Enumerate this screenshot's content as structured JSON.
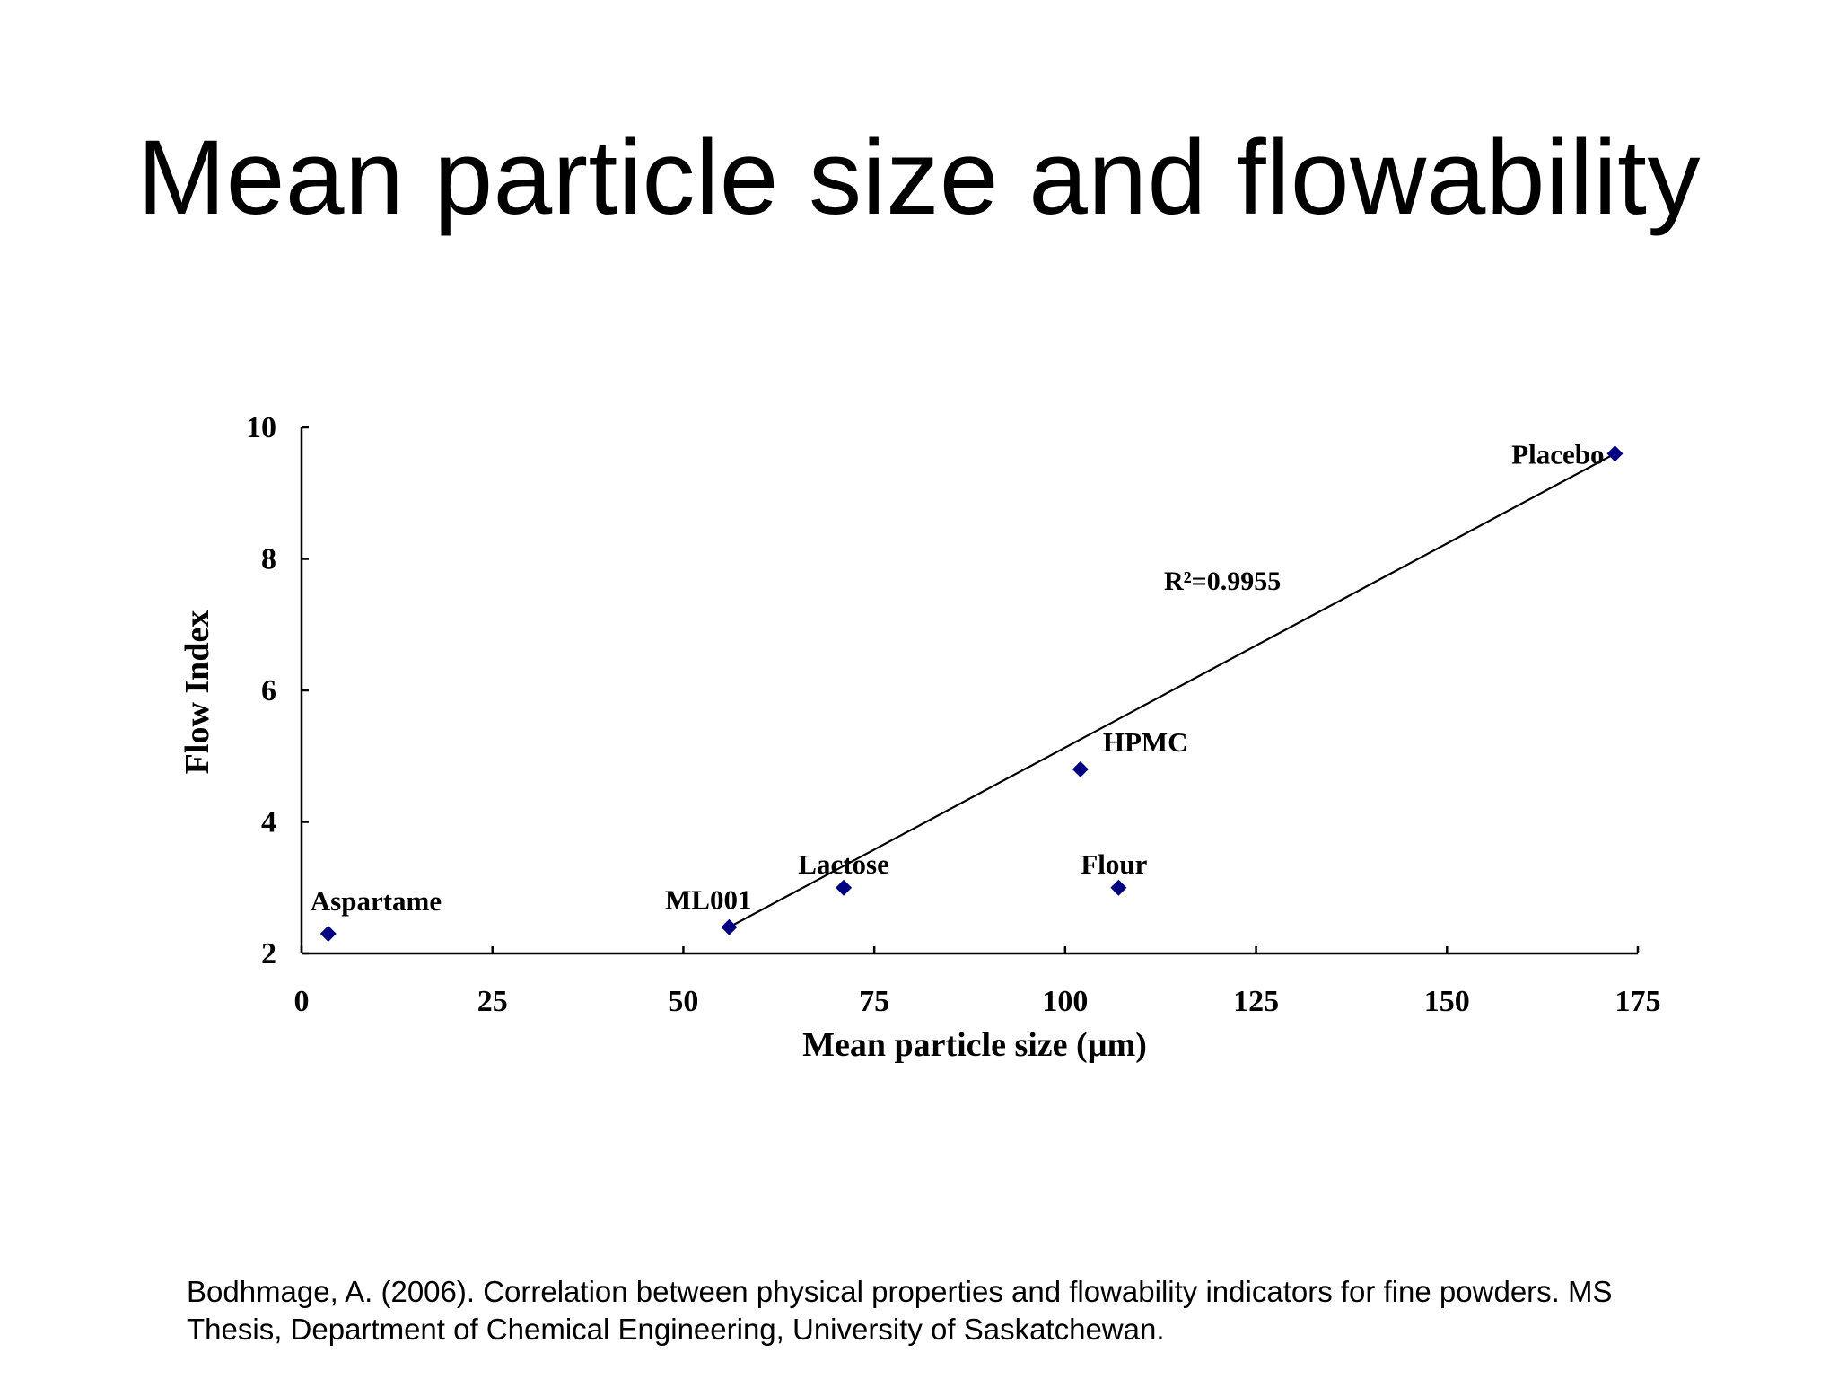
{
  "slide": {
    "title": "Mean particle size and flowability",
    "citation_line1": "Bodhmage, A. (2006). Correlation between physical properties and flowability indicators for fine powders. MS",
    "citation_line2": "Thesis, Department of Chemical Engineering, University of Saskatchewan."
  },
  "colors": {
    "marker": "#000080",
    "axis": "#000000",
    "text": "#000000",
    "trendline": "#000000"
  },
  "chart_data": {
    "type": "scatter",
    "title": "",
    "xlabel": "Mean particle size (µm)",
    "ylabel": "Flow Index",
    "xlim": [
      0,
      175
    ],
    "ylim": [
      2,
      10
    ],
    "xticks": [
      0,
      25,
      50,
      75,
      100,
      125,
      150,
      175
    ],
    "yticks": [
      2,
      4,
      6,
      8,
      10
    ],
    "grid": false,
    "legend": "none",
    "points": [
      {
        "name": "Aspartame",
        "x": 3.5,
        "y": 2.3
      },
      {
        "name": "ML001",
        "x": 56,
        "y": 2.4
      },
      {
        "name": "Lactose",
        "x": 71,
        "y": 3.0
      },
      {
        "name": "HPMC",
        "x": 102,
        "y": 4.8
      },
      {
        "name": "Flour",
        "x": 107,
        "y": 3.0
      },
      {
        "name": "Placebo",
        "x": 172,
        "y": 9.6
      }
    ],
    "trendline": {
      "x_start": 56,
      "y_start": 2.4,
      "x_end": 172,
      "y_end": 9.6,
      "annotation": "R²=0.9955"
    }
  }
}
